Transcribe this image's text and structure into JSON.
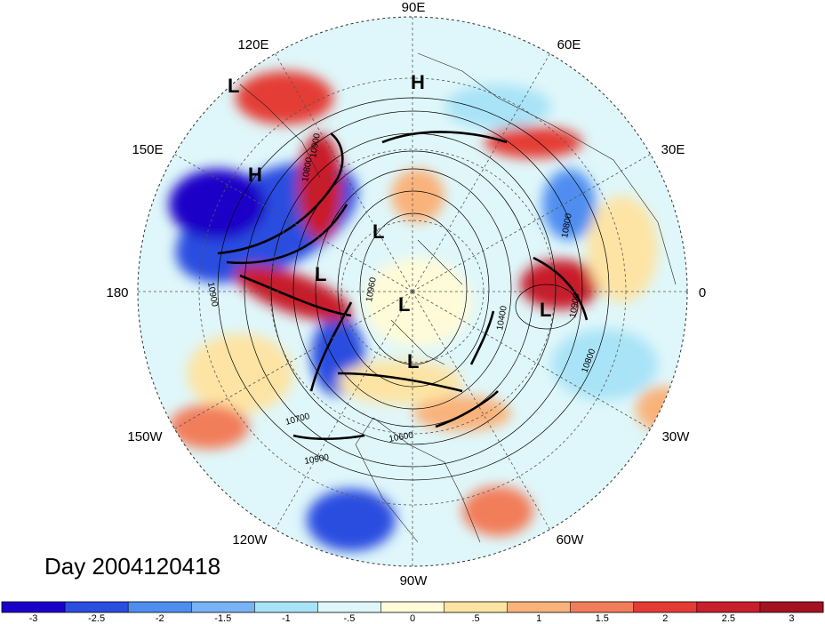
{
  "map": {
    "projection": "north-polar-stereographic",
    "longitude_labels": [
      "90E",
      "60E",
      "30E",
      "0",
      "30W",
      "60W",
      "90W",
      "120W",
      "150W",
      "180",
      "150E",
      "120E"
    ],
    "pressure_centers": [
      "L",
      "H",
      "H",
      "L",
      "L",
      "L",
      "L",
      "L"
    ],
    "contour_labels": [
      "10800",
      "10900",
      "10800",
      "10900",
      "10400",
      "10800",
      "10700",
      "10600",
      "10900",
      "10960",
      "10900"
    ]
  },
  "day_label": "Day 2004120418",
  "colorbar": {
    "colors": [
      "#1a00c8",
      "#2b4de0",
      "#4f8ef0",
      "#77b3f5",
      "#a9e3f7",
      "#dff7fa",
      "#fffbd8",
      "#fde4a4",
      "#f9b27a",
      "#f27d5a",
      "#e43c35",
      "#c81f2c",
      "#a51222"
    ],
    "tick_labels": [
      "-3",
      "-2.5",
      "-2",
      "-1.5",
      "-1",
      "-.5",
      "0",
      ".5",
      "1",
      "1.5",
      "2",
      "2.5",
      "3"
    ]
  }
}
